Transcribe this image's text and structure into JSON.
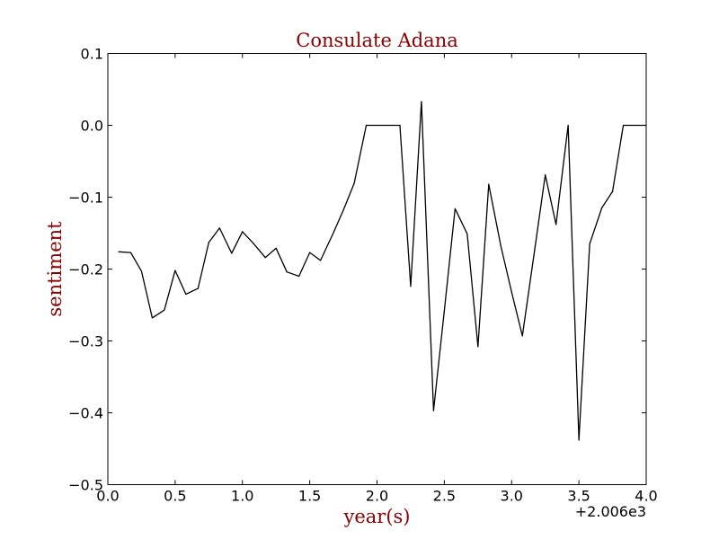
{
  "chart_data": {
    "type": "line",
    "title": "Consulate Adana",
    "xlabel": "year(s)",
    "ylabel": "sentiment",
    "x_offset_label": "+2.006e3",
    "xlim": [
      0.0,
      4.0
    ],
    "ylim": [
      -0.5,
      0.1
    ],
    "xticks": [
      0.0,
      0.5,
      1.0,
      1.5,
      2.0,
      2.5,
      3.0,
      3.5,
      4.0
    ],
    "xtick_labels": [
      "0.0",
      "0.5",
      "1.0",
      "1.5",
      "2.0",
      "2.5",
      "3.0",
      "3.5",
      "4.0"
    ],
    "yticks": [
      0.1,
      0.0,
      -0.1,
      -0.2,
      -0.3,
      -0.4,
      -0.5
    ],
    "ytick_labels": [
      "0.1",
      "0.0",
      "−0.1",
      "−0.2",
      "−0.3",
      "−0.4",
      "−0.5"
    ],
    "grid": false,
    "line_color": "#000000",
    "text_color": "#8b0000",
    "series": [
      {
        "x": [
          0.08,
          0.17,
          0.25,
          0.33,
          0.42,
          0.5,
          0.58,
          0.67,
          0.75,
          0.83,
          0.92,
          1.0,
          1.08,
          1.17,
          1.25,
          1.33,
          1.42,
          1.5,
          1.58,
          1.67,
          1.75,
          1.83,
          1.92,
          2.0,
          2.08,
          2.17,
          2.25,
          2.33,
          2.42,
          2.5,
          2.58,
          2.67,
          2.75,
          2.83,
          2.92,
          3.0,
          3.08,
          3.17,
          3.25,
          3.33,
          3.42,
          3.5,
          3.58,
          3.67,
          3.75,
          3.83,
          3.92,
          4.0
        ],
        "values": [
          -0.176,
          -0.177,
          -0.203,
          -0.268,
          -0.257,
          -0.202,
          -0.235,
          -0.227,
          -0.163,
          -0.143,
          -0.178,
          -0.148,
          -0.164,
          -0.184,
          -0.171,
          -0.204,
          -0.21,
          -0.177,
          -0.188,
          -0.152,
          -0.118,
          -0.081,
          0.0,
          0.0,
          0.0,
          0.0,
          -0.224,
          0.033,
          -0.397,
          -0.258,
          -0.116,
          -0.151,
          -0.308,
          -0.082,
          -0.168,
          -0.232,
          -0.293,
          -0.175,
          -0.069,
          -0.138,
          0.0,
          -0.438,
          -0.165,
          -0.115,
          -0.092,
          0.0,
          0.0,
          0.0
        ]
      }
    ]
  }
}
